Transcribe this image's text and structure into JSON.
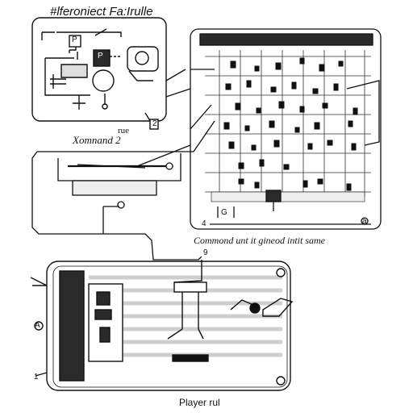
{
  "labels": {
    "title": "#lferoniect Fa:Irulle",
    "left_caption": "Xomnand 2",
    "left_caption_suffix": "rue",
    "grid_caption": "Commond unt it gineod intit same",
    "bottom_caption": "Player rul"
  },
  "markers": {
    "tl_box": "P",
    "tl_box_b": "P",
    "left_tag": "2",
    "grid_left_tag": "4",
    "grid_mid_tag": "G",
    "grid_right_tag": "a",
    "mid_connector_tag": "9",
    "bottom_left_tag": "1",
    "side_letter": "A"
  },
  "colors": {
    "ink": "#111111",
    "panel_dark": "#2a2a2a",
    "panel_gray": "#cfcfcf",
    "light_fill": "#eeeeee"
  }
}
